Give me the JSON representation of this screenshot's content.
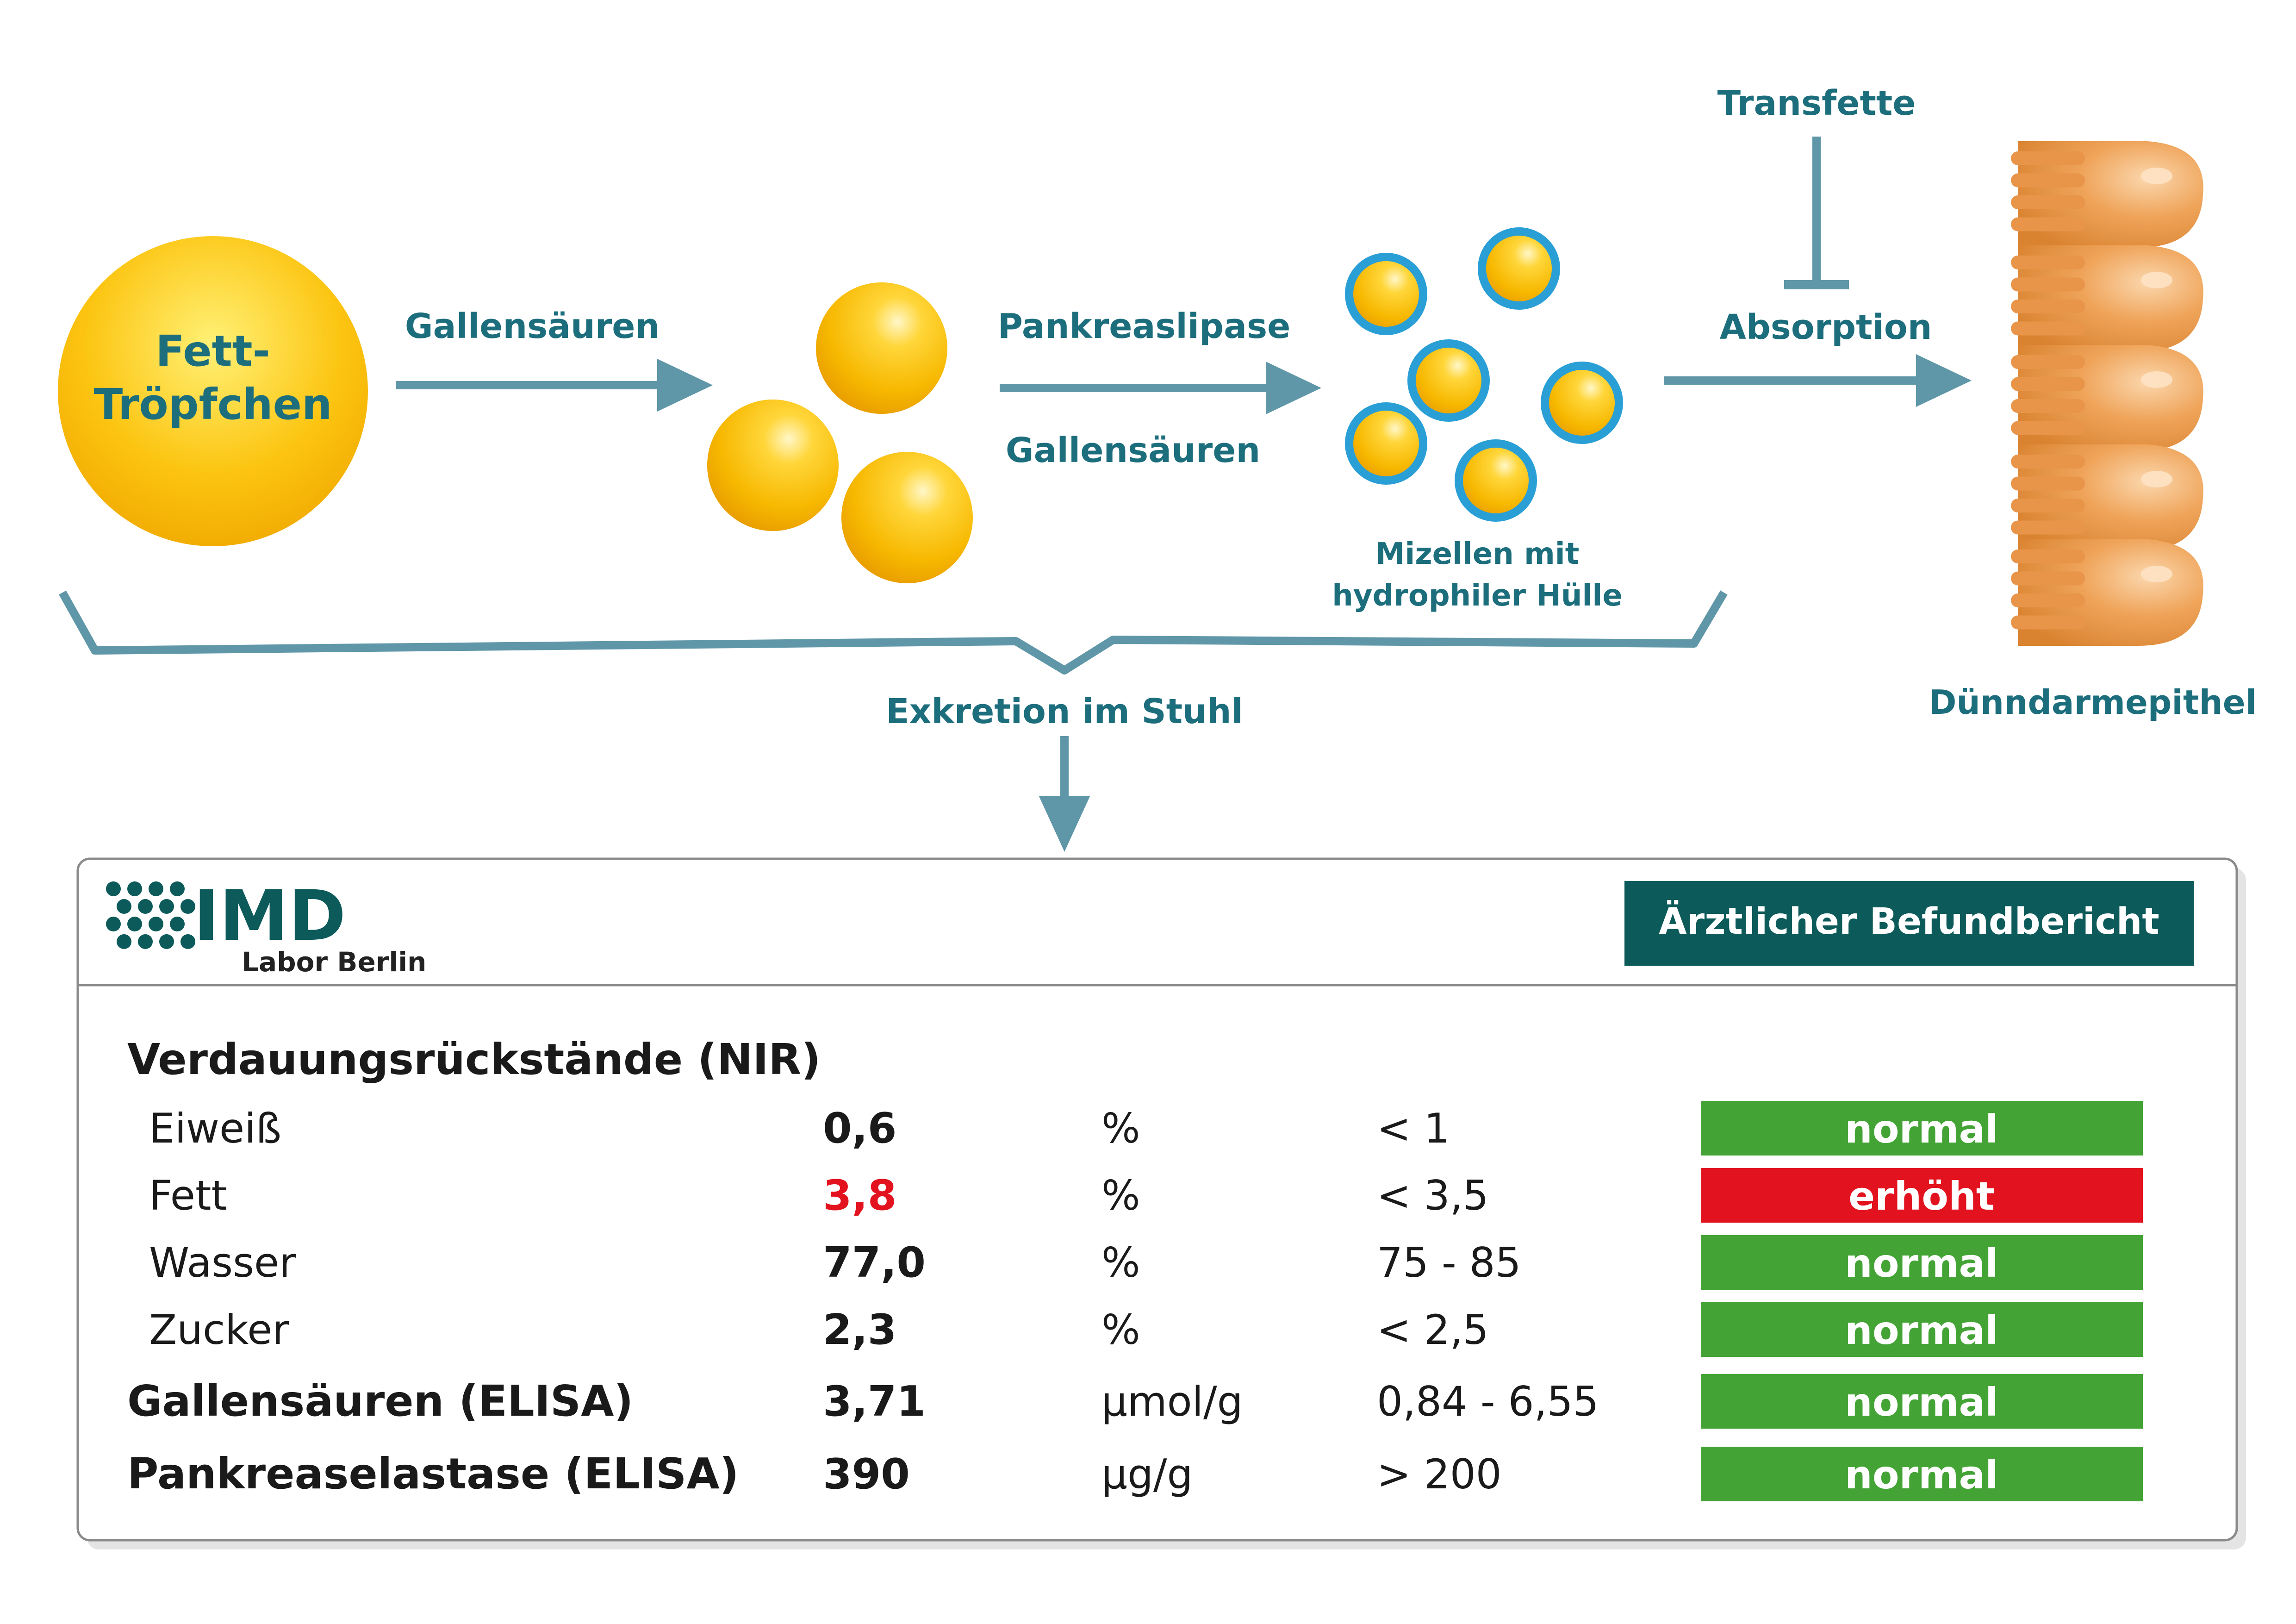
{
  "colors": {
    "label": "#1d6e7d",
    "arrow": "#5f97a8",
    "droplet": "#f6b600",
    "micelle_shell": "#2a9fd6",
    "epithelium": "#e89a4c",
    "header_bg": "#0d5a5a",
    "normal": "#43a435",
    "elevated": "#e2131e",
    "value_elevated": "#e2131e"
  },
  "diagram": {
    "droplet_label_line1": "Fett-",
    "droplet_label_line2": "Tröpfchen",
    "arrow1_label": "Gallensäuren",
    "arrow2_label_top": "Pankreaslipase",
    "arrow2_label_bottom": "Gallensäuren",
    "micelle_label_line1": "Mizellen mit",
    "micelle_label_line2": "hydrophiler Hülle",
    "inhibitor_label": "Transfette",
    "arrow3_label": "Absorption",
    "epithelium_label": "Dünndarmepithel",
    "excretion_label": "Exkretion im Stuhl"
  },
  "report": {
    "logo_text": "IMD",
    "logo_sub": "Labor Berlin",
    "header_title": "Ärztlicher Befundbericht",
    "section_title": "Verdauungsrückstände (NIR)",
    "rows": [
      {
        "name": "Eiweiß",
        "value": "0,6",
        "unit": "%",
        "range": "< 1",
        "status": "normal",
        "indent": true,
        "bold_name": false,
        "elevated": false
      },
      {
        "name": "Fett",
        "value": "3,8",
        "unit": "%",
        "range": "< 3,5",
        "status": "erhöht",
        "indent": true,
        "bold_name": false,
        "elevated": true
      },
      {
        "name": "Wasser",
        "value": "77,0",
        "unit": "%",
        "range": "75 - 85",
        "status": "normal",
        "indent": true,
        "bold_name": false,
        "elevated": false
      },
      {
        "name": "Zucker",
        "value": "2,3",
        "unit": "%",
        "range": "< 2,5",
        "status": "normal",
        "indent": true,
        "bold_name": false,
        "elevated": false
      },
      {
        "name": "Gallensäuren (ELISA)",
        "value": "3,71",
        "unit": "µmol/g",
        "range": "0,84 - 6,55",
        "status": "normal",
        "indent": false,
        "bold_name": true,
        "elevated": false
      },
      {
        "name": "Pankreaselastase (ELISA)",
        "value": "390",
        "unit": "µg/g",
        "range": "> 200",
        "status": "normal",
        "indent": false,
        "bold_name": true,
        "elevated": false
      }
    ]
  }
}
